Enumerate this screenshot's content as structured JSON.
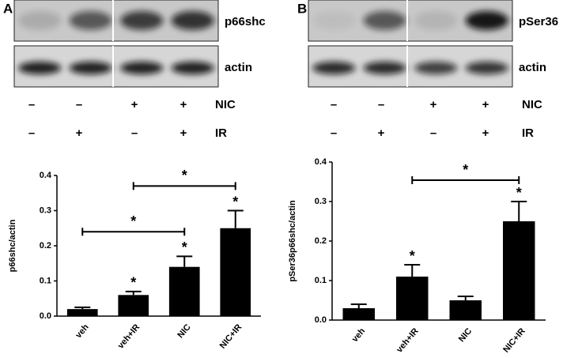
{
  "panels": [
    {
      "letter": "A",
      "blots": [
        "p66shc",
        "actin"
      ],
      "conditions": [
        {
          "name": "NIC",
          "signs": [
            "–",
            "–",
            "+",
            "+"
          ]
        },
        {
          "name": "IR",
          "signs": [
            "–",
            "+",
            "–",
            "+"
          ]
        }
      ]
    },
    {
      "letter": "B",
      "blots": [
        "pSer36",
        "actin"
      ],
      "conditions": [
        {
          "name": "NIC",
          "signs": [
            "–",
            "–",
            "+",
            "+"
          ]
        },
        {
          "name": "IR",
          "signs": [
            "–",
            "+",
            "–",
            "+"
          ]
        }
      ]
    }
  ],
  "chart_data": [
    {
      "type": "bar",
      "ylabel": "p66shc/actin",
      "categories": [
        "veh",
        "veh+IR",
        "NIC",
        "NIC+IR"
      ],
      "values": [
        0.02,
        0.06,
        0.14,
        0.25
      ],
      "errors": [
        0.005,
        0.01,
        0.03,
        0.05
      ],
      "color": "#000000",
      "stars": [
        null,
        "*",
        "*",
        "*"
      ],
      "brackets": [
        {
          "from": 0,
          "to": 2,
          "y": 0.24,
          "label": "*"
        },
        {
          "from": 1,
          "to": 3,
          "y": 0.37,
          "label": "*"
        }
      ],
      "ylim": [
        0,
        0.4
      ],
      "yticks": [
        {
          "value": 0,
          "label": "0.0"
        },
        0.1,
        0.2,
        0.3,
        0.4
      ]
    },
    {
      "type": "bar",
      "ylabel": "pSer36p66shc/actin",
      "categories": [
        "veh",
        "veh+IR",
        "NIC",
        "NIC+IR"
      ],
      "values": [
        0.03,
        0.11,
        0.05,
        0.25
      ],
      "errors": [
        0.01,
        0.03,
        0.01,
        0.05
      ],
      "color": "#000000",
      "stars": [
        null,
        "*",
        null,
        "*"
      ],
      "brackets": [
        {
          "from": 1,
          "to": 3,
          "y": 0.354,
          "label": "*"
        }
      ],
      "ylim": [
        0,
        0.4
      ],
      "yticks": [
        {
          "value": 0,
          "label": "0.0"
        },
        0.1,
        0.2,
        0.3,
        0.4
      ]
    }
  ]
}
